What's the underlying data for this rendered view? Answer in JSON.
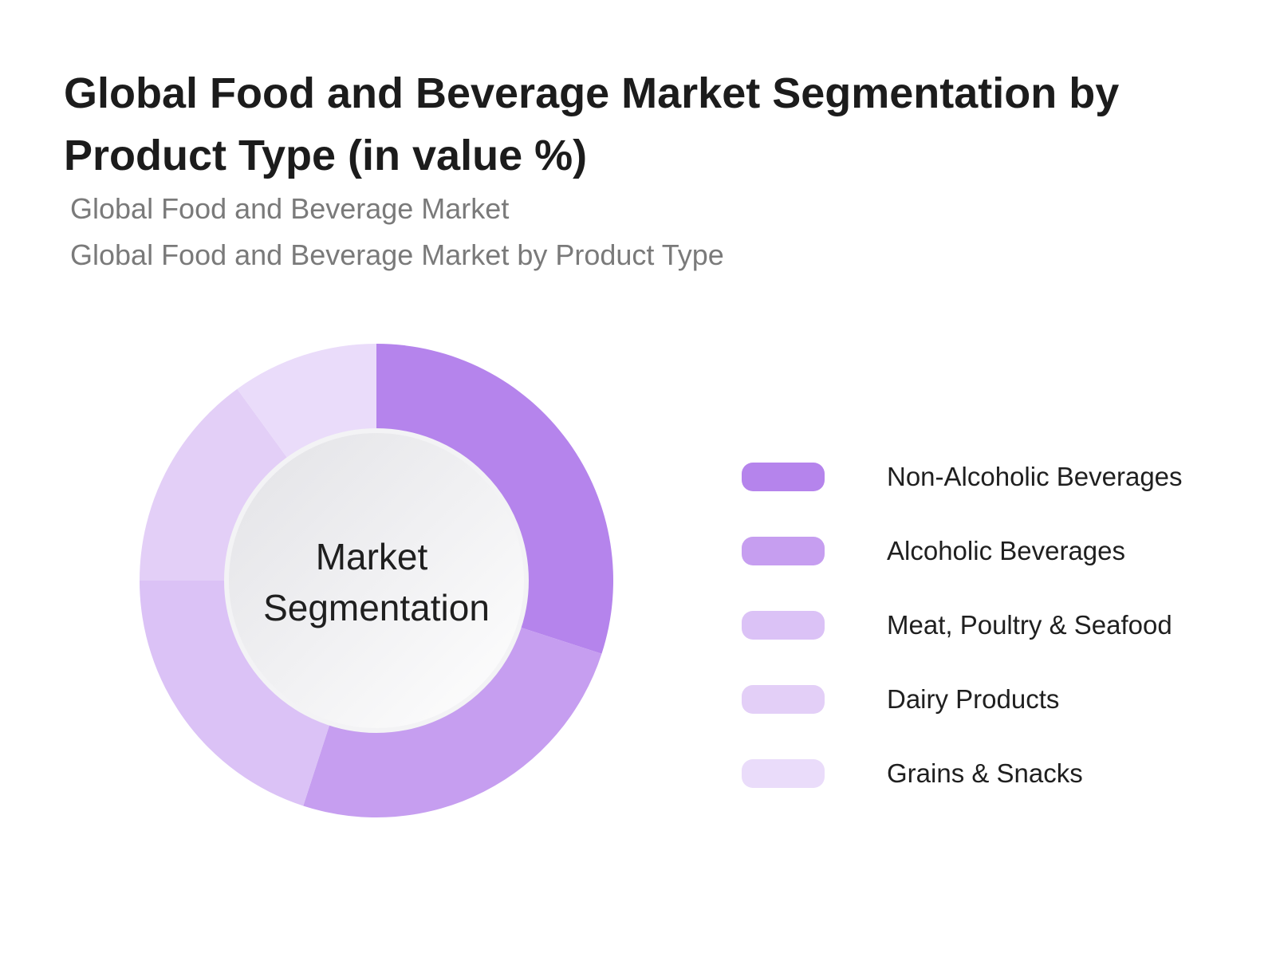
{
  "chart_data": {
    "type": "pie",
    "title": "Global Food and Beverage Market Segmentation by Product Type (in value %)",
    "subtitles": [
      "Global Food and Beverage Market",
      "Global Food and Beverage Market by Product Type"
    ],
    "center_label": [
      "Market",
      "Segmentation"
    ],
    "categories": [
      "Non-Alcoholic Beverages",
      "Alcoholic Beverages",
      "Meat, Poultry & Seafood",
      "Dairy Products",
      "Grains & Snacks"
    ],
    "values": [
      30,
      25,
      20,
      15,
      10
    ],
    "colors": [
      "#b584ec",
      "#c69ef0",
      "#dbc2f6",
      "#e3cff7",
      "#eadcfa"
    ],
    "legend_position": "right",
    "donut": true
  }
}
